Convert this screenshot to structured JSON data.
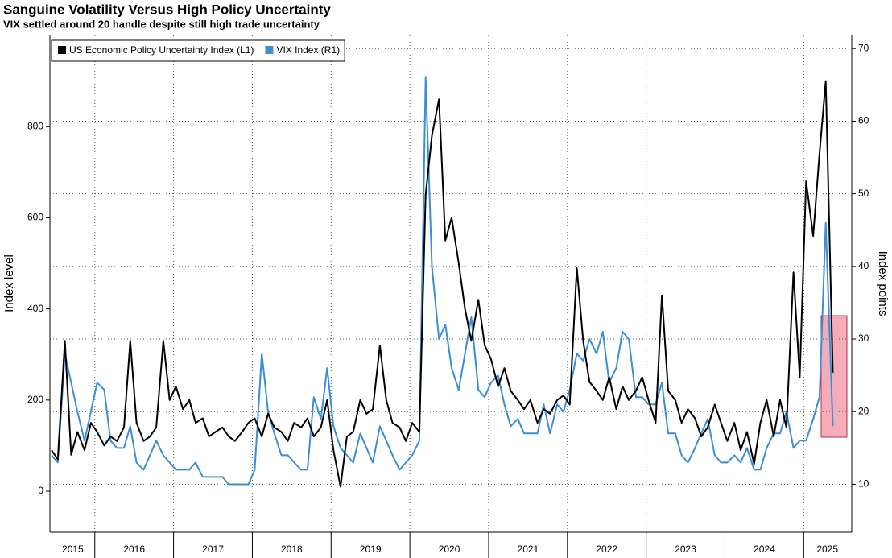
{
  "chart_data": {
    "type": "line",
    "title": "Sanguine Volatility Versus High Policy Uncertainty",
    "subtitle": "VIX settled around 20 handle despite still high trade uncertainty",
    "y_label": "Index level",
    "y2_label": "Index points",
    "x": [
      2015.45,
      2015.53,
      2015.62,
      2015.7,
      2015.78,
      2015.87,
      2015.95,
      2016.03,
      2016.12,
      2016.2,
      2016.28,
      2016.37,
      2016.45,
      2016.53,
      2016.62,
      2016.7,
      2016.78,
      2016.87,
      2016.95,
      2017.03,
      2017.12,
      2017.2,
      2017.28,
      2017.37,
      2017.45,
      2017.53,
      2017.62,
      2017.7,
      2017.78,
      2017.87,
      2017.95,
      2018.03,
      2018.12,
      2018.2,
      2018.28,
      2018.37,
      2018.45,
      2018.53,
      2018.62,
      2018.7,
      2018.78,
      2018.87,
      2018.95,
      2019.03,
      2019.12,
      2019.2,
      2019.28,
      2019.37,
      2019.45,
      2019.53,
      2019.62,
      2019.7,
      2019.78,
      2019.87,
      2019.95,
      2020.03,
      2020.12,
      2020.2,
      2020.28,
      2020.37,
      2020.45,
      2020.53,
      2020.62,
      2020.7,
      2020.78,
      2020.87,
      2020.95,
      2021.03,
      2021.12,
      2021.2,
      2021.28,
      2021.37,
      2021.45,
      2021.53,
      2021.62,
      2021.7,
      2021.78,
      2021.87,
      2021.95,
      2022.03,
      2022.12,
      2022.2,
      2022.28,
      2022.37,
      2022.45,
      2022.53,
      2022.62,
      2022.7,
      2022.78,
      2022.87,
      2022.95,
      2023.03,
      2023.12,
      2023.2,
      2023.28,
      2023.37,
      2023.45,
      2023.53,
      2023.62,
      2023.7,
      2023.78,
      2023.87,
      2023.95,
      2024.03,
      2024.12,
      2024.2,
      2024.28,
      2024.37,
      2024.45,
      2024.53,
      2024.62,
      2024.7,
      2024.78,
      2024.87,
      2024.95,
      2025.03,
      2025.12,
      2025.2,
      2025.28,
      2025.37
    ],
    "series": [
      {
        "name": "US Economic Policy Uncertainty Index (L1)",
        "color": "#000000",
        "axis": "y",
        "values": [
          90,
          70,
          330,
          80,
          130,
          90,
          150,
          130,
          100,
          120,
          110,
          140,
          330,
          150,
          110,
          120,
          140,
          330,
          200,
          230,
          180,
          200,
          150,
          160,
          120,
          130,
          140,
          120,
          110,
          130,
          150,
          160,
          120,
          170,
          140,
          130,
          110,
          150,
          140,
          160,
          120,
          140,
          200,
          90,
          10,
          120,
          130,
          200,
          170,
          180,
          320,
          200,
          150,
          140,
          110,
          150,
          130,
          650,
          780,
          860,
          550,
          600,
          500,
          400,
          330,
          420,
          320,
          290,
          230,
          270,
          220,
          200,
          180,
          200,
          150,
          180,
          170,
          200,
          210,
          190,
          490,
          330,
          240,
          220,
          200,
          250,
          180,
          230,
          200,
          220,
          250,
          200,
          150,
          430,
          220,
          200,
          150,
          180,
          160,
          120,
          140,
          190,
          150,
          110,
          150,
          90,
          130,
          60,
          150,
          200,
          120,
          200,
          140,
          480,
          250,
          680,
          560,
          740,
          900,
          260
        ]
      },
      {
        "name": "VIX Index (R1)",
        "color": "#3a8ed8",
        "axis": "y2",
        "values": [
          14,
          13,
          28,
          24,
          20,
          16,
          20,
          24,
          23,
          16,
          15,
          15,
          18,
          13,
          12,
          14,
          16,
          14,
          13,
          12,
          12,
          12,
          13,
          11,
          11,
          11,
          11,
          10,
          10,
          10,
          10,
          12,
          28,
          20,
          17,
          14,
          14,
          13,
          12,
          12,
          22,
          19,
          26,
          18,
          15,
          14,
          13,
          17,
          15,
          13,
          18,
          16,
          14,
          12,
          13,
          14,
          16,
          66,
          40,
          30,
          32,
          26,
          23,
          28,
          33,
          23,
          22,
          24,
          25,
          21,
          18,
          19,
          17,
          17,
          17,
          21,
          17,
          21,
          20,
          23,
          28,
          27,
          30,
          28,
          31,
          24,
          26,
          31,
          30,
          22,
          22,
          21,
          21,
          24,
          17,
          17,
          14,
          13,
          15,
          17,
          19,
          14,
          13,
          13,
          14,
          13,
          15,
          12,
          12,
          15,
          17,
          17,
          20,
          15,
          16,
          16,
          19,
          22,
          46,
          18
        ]
      }
    ],
    "xlim": [
      2015.43,
      2025.61
    ],
    "xticks": [
      {
        "value": 2015.72,
        "label": "2015"
      },
      {
        "value": 2016.5,
        "label": "2016"
      },
      {
        "value": 2017.5,
        "label": "2017"
      },
      {
        "value": 2018.5,
        "label": "2018"
      },
      {
        "value": 2019.5,
        "label": "2019"
      },
      {
        "value": 2020.5,
        "label": "2020"
      },
      {
        "value": 2021.5,
        "label": "2021"
      },
      {
        "value": 2022.5,
        "label": "2022"
      },
      {
        "value": 2023.5,
        "label": "2023"
      },
      {
        "value": 2024.5,
        "label": "2024"
      },
      {
        "value": 2025.3,
        "label": "2025"
      }
    ],
    "ylim": [
      -90,
      1000
    ],
    "yticks": [
      0,
      200,
      400,
      600,
      800
    ],
    "y2lim": [
      3.4,
      71.8
    ],
    "y2ticks": [
      10,
      20,
      30,
      40,
      50,
      60,
      70
    ],
    "grid": true,
    "legend": "top-left"
  }
}
